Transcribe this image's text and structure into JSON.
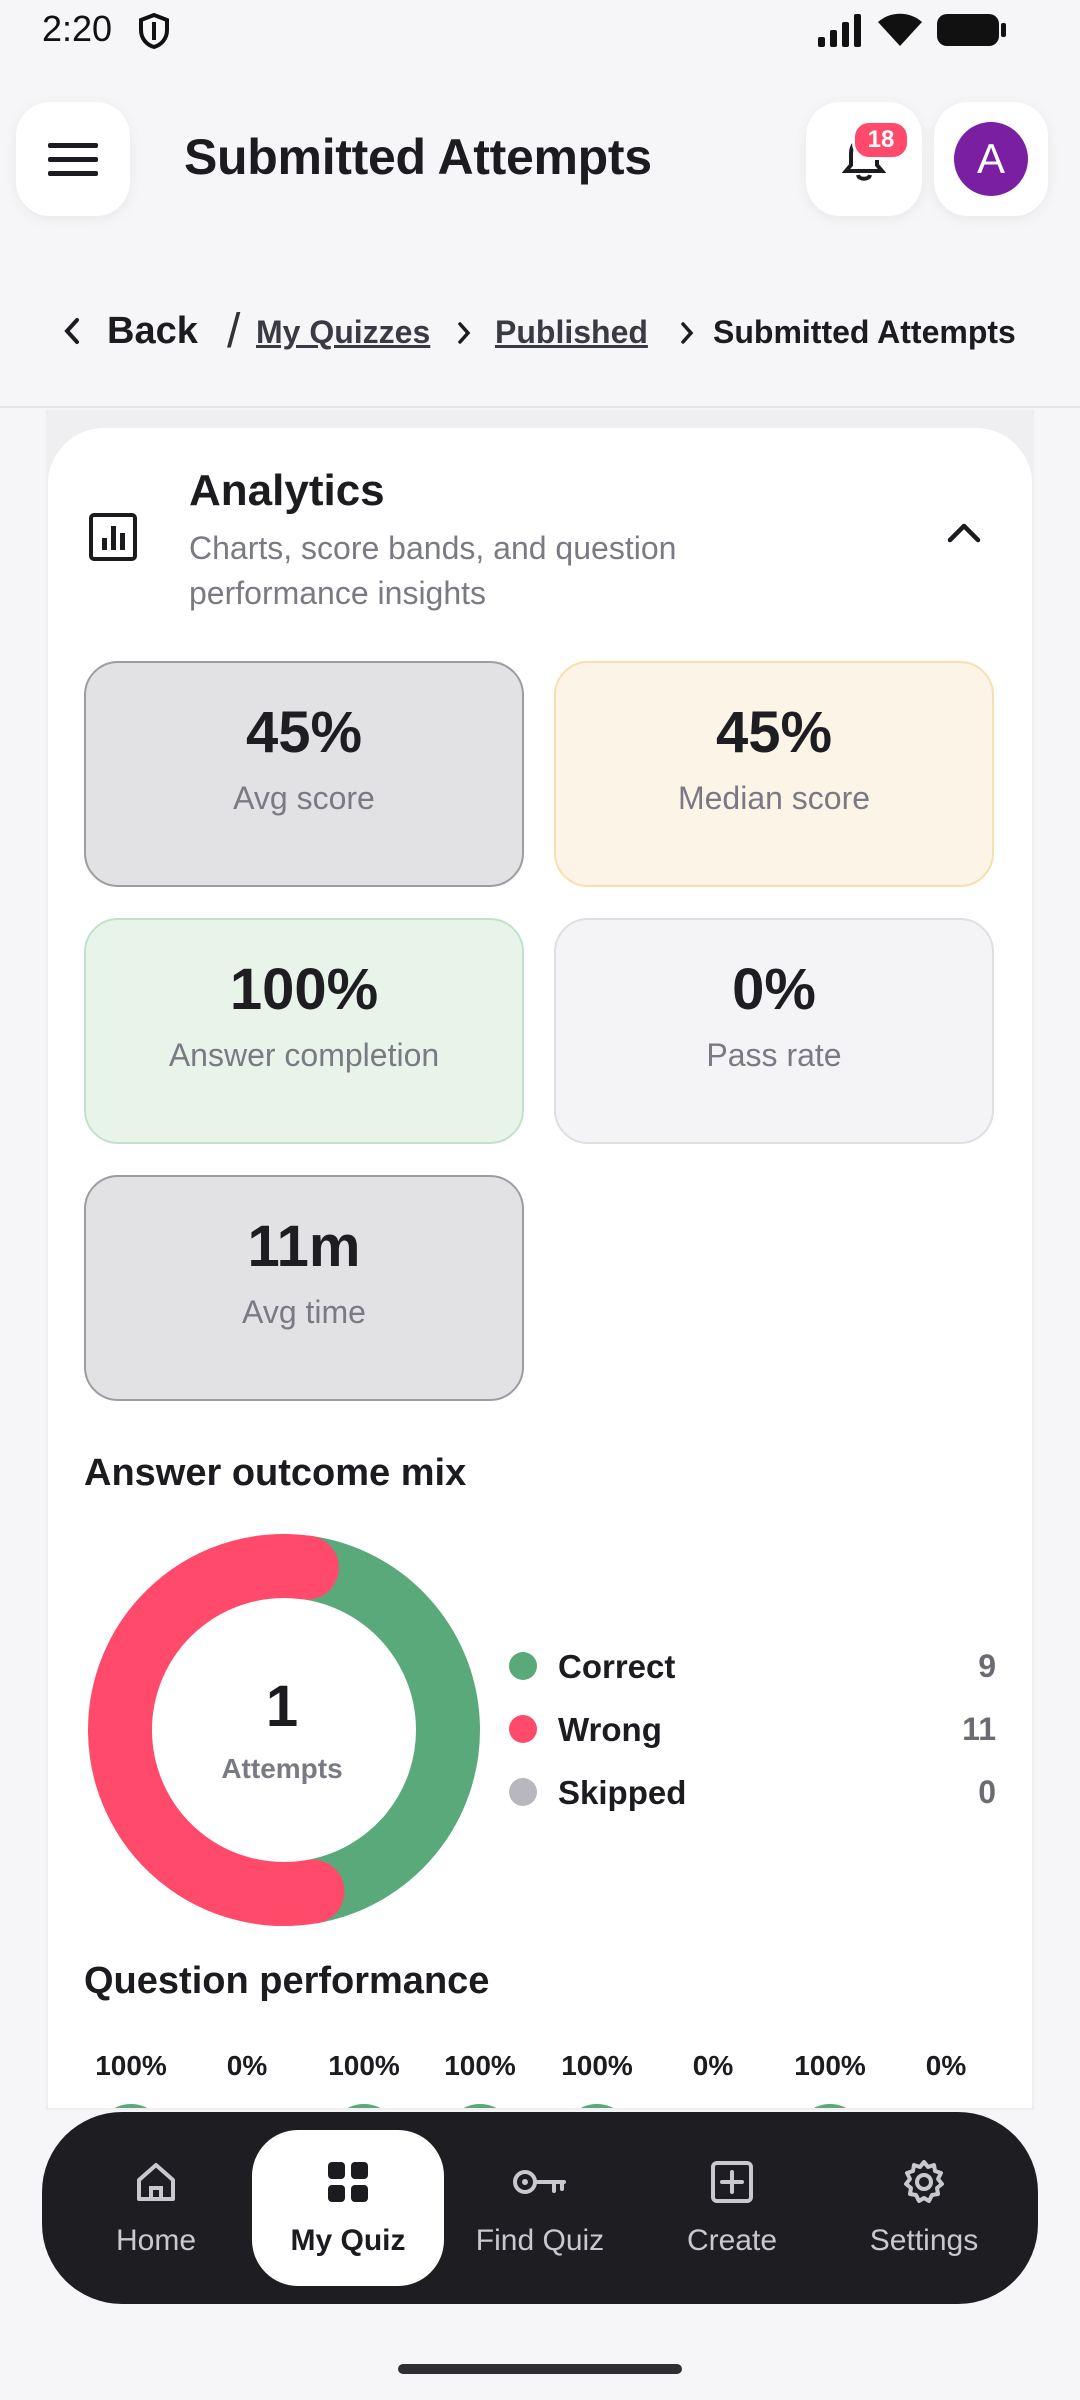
{
  "status_bar": {
    "time": "2:20"
  },
  "header": {
    "title": "Submitted Attempts",
    "notification_count": "18",
    "avatar_initial": "A"
  },
  "breadcrumb": {
    "back": "Back",
    "slash": "/",
    "items": [
      "My Quizzes",
      "Published"
    ],
    "current": "Submitted Attempts"
  },
  "analytics": {
    "title": "Analytics",
    "subtitle": "Charts, score bands, and question performance insights",
    "stats": [
      {
        "value": "45%",
        "label": "Avg score",
        "color": "#e2e2e4",
        "border": "#9c9ca2"
      },
      {
        "value": "45%",
        "label": "Median score",
        "color": "#fbf4e7",
        "border": "#f7dfb0"
      },
      {
        "value": "100%",
        "label": "Answer completion",
        "color": "#e8f4ea",
        "border": "#bfe3c8"
      },
      {
        "value": "0%",
        "label": "Pass rate",
        "color": "#f4f4f6",
        "border": "#dedee3"
      },
      {
        "value": "11m",
        "label": "Avg time",
        "color": "#e2e2e4",
        "border": "#9c9ca2"
      }
    ]
  },
  "outcome": {
    "title": "Answer outcome mix",
    "center_value": "1",
    "center_label": "Attempts",
    "legend": [
      {
        "name": "Correct",
        "value": "9",
        "color": "#59a97a"
      },
      {
        "name": "Wrong",
        "value": "11",
        "color": "#ff4a6b"
      },
      {
        "name": "Skipped",
        "value": "0",
        "color": "#b7b7bd"
      }
    ]
  },
  "chart_data": {
    "type": "pie",
    "categories": [
      "Correct",
      "Wrong",
      "Skipped"
    ],
    "values": [
      9,
      11,
      0
    ],
    "title": "Answer outcome mix"
  },
  "question_performance": {
    "title": "Question performance",
    "values": [
      "100%",
      "0%",
      "100%",
      "100%",
      "100%",
      "0%",
      "100%",
      "0%"
    ]
  },
  "nav": {
    "items": [
      {
        "label": "Home",
        "icon": "home-icon"
      },
      {
        "label": "My Quiz",
        "icon": "grid-icon"
      },
      {
        "label": "Find Quiz",
        "icon": "key-icon"
      },
      {
        "label": "Create",
        "icon": "plus-square-icon"
      },
      {
        "label": "Settings",
        "icon": "gear-icon"
      }
    ],
    "active_index": 1
  }
}
